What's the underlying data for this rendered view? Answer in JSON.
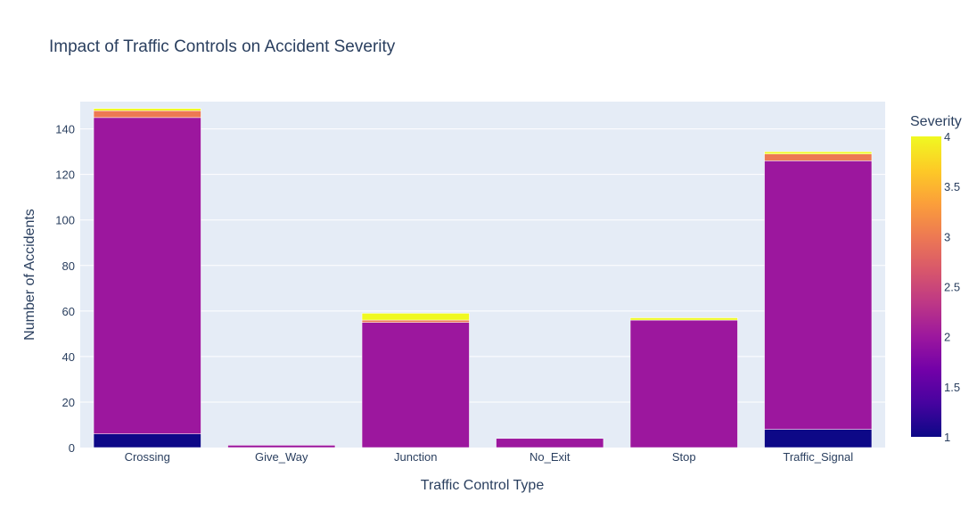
{
  "chart_data": {
    "type": "bar",
    "stacked": true,
    "title": "Impact of Traffic Controls on Accident Severity",
    "xlabel": "Traffic Control Type",
    "ylabel": "Number of Accidents",
    "categories": [
      "Crossing",
      "Give_Way",
      "Junction",
      "No_Exit",
      "Stop",
      "Traffic_Signal"
    ],
    "ylim": [
      0,
      152
    ],
    "yticks": [
      0,
      20,
      40,
      60,
      80,
      100,
      120,
      140
    ],
    "grid": true,
    "colorbar": {
      "title": "Severity",
      "range": [
        1,
        4
      ],
      "ticks": [
        "1",
        "1.5",
        "2",
        "2.5",
        "3",
        "3.5",
        "4"
      ]
    },
    "series": [
      {
        "severity": 1,
        "values": [
          6,
          0,
          0,
          0,
          0,
          8
        ]
      },
      {
        "severity": 2,
        "values": [
          139,
          1,
          55,
          4,
          56,
          118
        ]
      },
      {
        "severity": 3,
        "values": [
          3,
          0,
          1,
          0,
          0,
          3
        ]
      },
      {
        "severity": 4,
        "values": [
          1,
          0,
          3,
          0,
          1,
          1
        ]
      }
    ]
  }
}
